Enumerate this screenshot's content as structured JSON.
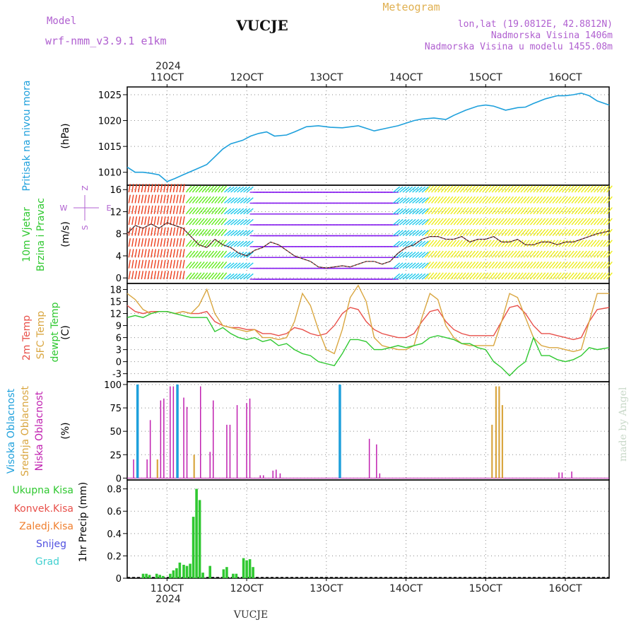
{
  "header": {
    "model_label": "Model",
    "model_name": "wrf-nmm_v3.9.1 e1km",
    "station": "VUCJE",
    "meteogram_label": "Meteogram",
    "lonlat": "lon,lat (19.0812E, 42.8812N)",
    "elevation": "Nadmorska Visina 1406m",
    "model_elevation": "Nadmorska Visina u modelu 1455.08m",
    "year_top": "2024",
    "year_bottom": "2024",
    "footer_station": "VUCJE",
    "watermark": "made by Angel"
  },
  "colors": {
    "pressure": "#1ea0dc",
    "temp2m": "#e8504a",
    "sfc": "#d9a640",
    "dewpt": "#2fc830",
    "high_cloud": "#1ea0dc",
    "mid_cloud": "#d9a640",
    "low_cloud": "#c020b0",
    "total_precip": "#2fc830",
    "conv_precip": "#e8504a",
    "freezing": "#f08030",
    "snow": "#5050e0",
    "hail": "#40d0d0",
    "wind_label": "#2fc830",
    "compass": "#b060d0"
  },
  "chart_data": [
    {
      "type": "line",
      "title": "",
      "ylabel": "(hPa)",
      "side_label": "Pritisak na nivou mora",
      "yticks": [
        1010,
        1015,
        1020,
        1025
      ],
      "ylim": [
        1007.5,
        1026.5
      ],
      "xlim": [
        10.5,
        16.55
      ],
      "x_ticks": [
        11,
        12,
        13,
        14,
        15,
        16
      ],
      "x_tick_labels": [
        "11OCT",
        "12OCT",
        "13OCT",
        "14OCT",
        "15OCT",
        "16OCT"
      ],
      "series": [
        {
          "name": "Pritisak na nivou mora",
          "x": [
            10.5,
            10.6,
            10.7,
            10.8,
            10.9,
            11.0,
            11.1,
            11.2,
            11.35,
            11.5,
            11.6,
            11.7,
            11.8,
            11.95,
            12.05,
            12.15,
            12.25,
            12.35,
            12.5,
            12.6,
            12.75,
            12.9,
            13.05,
            13.2,
            13.4,
            13.5,
            13.6,
            13.75,
            13.9,
            14.0,
            14.1,
            14.2,
            14.35,
            14.5,
            14.6,
            14.75,
            14.9,
            15.0,
            15.1,
            15.25,
            15.4,
            15.5,
            15.6,
            15.75,
            15.9,
            16.0,
            16.1,
            16.2,
            16.3,
            16.4,
            16.55
          ],
          "y": [
            1011,
            1010,
            1010,
            1009.8,
            1009.5,
            1008.2,
            1008.8,
            1009.5,
            1010.5,
            1011.5,
            1013,
            1014.5,
            1015.5,
            1016.2,
            1017,
            1017.5,
            1017.8,
            1017.0,
            1017.2,
            1017.8,
            1018.8,
            1019,
            1018.7,
            1018.6,
            1019,
            1018.5,
            1018,
            1018.5,
            1019,
            1019.5,
            1020,
            1020.3,
            1020.5,
            1020.2,
            1021,
            1022,
            1022.8,
            1023,
            1022.8,
            1022,
            1022.5,
            1022.6,
            1023.3,
            1024.2,
            1024.8,
            1024.8,
            1025,
            1025.3,
            1024.8,
            1023.8,
            1023
          ]
        }
      ]
    },
    {
      "type": "line",
      "title": "",
      "ylabel": "(m/s)",
      "side_label": [
        "10m Vjetar",
        "Brzina i Pravac"
      ],
      "compass": {
        "n": "Z",
        "e": "E",
        "w": "W",
        "s": "S"
      },
      "yticks": [
        0,
        4,
        8,
        12,
        16
      ],
      "ylim": [
        -1,
        16.8
      ],
      "x_ticks": [
        11,
        12,
        13,
        14,
        15,
        16
      ],
      "series": [
        {
          "name": "wind_speed",
          "x": [
            10.5,
            10.6,
            10.7,
            10.8,
            10.9,
            11.0,
            11.1,
            11.2,
            11.3,
            11.4,
            11.5,
            11.6,
            11.7,
            11.8,
            11.9,
            12.0,
            12.1,
            12.2,
            12.3,
            12.4,
            12.5,
            12.6,
            12.7,
            12.8,
            12.9,
            13.0,
            13.1,
            13.2,
            13.3,
            13.4,
            13.5,
            13.6,
            13.7,
            13.8,
            13.9,
            14.0,
            14.1,
            14.2,
            14.3,
            14.4,
            14.5,
            14.6,
            14.7,
            14.8,
            14.9,
            15.0,
            15.1,
            15.2,
            15.3,
            15.4,
            15.5,
            15.6,
            15.7,
            15.8,
            15.9,
            16.0,
            16.1,
            16.2,
            16.3,
            16.4,
            16.55
          ],
          "y": [
            8,
            9.5,
            9,
            9.8,
            9,
            10,
            9.5,
            9,
            7.5,
            6,
            5.5,
            7,
            6,
            5.5,
            4.5,
            4,
            5,
            5.5,
            6.5,
            6,
            5,
            4,
            3.5,
            3,
            2,
            1.8,
            2,
            2.2,
            2,
            2.5,
            3,
            3,
            2.5,
            3,
            4.5,
            5.5,
            6,
            7,
            7.5,
            7.5,
            7,
            7,
            7.5,
            6.5,
            7,
            7,
            7.5,
            6.5,
            6.5,
            7,
            6,
            6,
            6.5,
            6.5,
            6,
            6.5,
            6.5,
            7,
            7.5,
            8,
            8.5
          ]
        }
      ],
      "vane_hue_range": [
        0,
        270
      ]
    },
    {
      "type": "line",
      "title": "",
      "ylabel": "(C)",
      "side_labels": [
        "2m Temp",
        "SFC Temp",
        "dewpt Temp"
      ],
      "yticks": [
        -3,
        0,
        3,
        6,
        9,
        12,
        15,
        18
      ],
      "ylim": [
        -5,
        19.5
      ],
      "x_ticks": [
        11,
        12,
        13,
        14,
        15,
        16
      ],
      "series": [
        {
          "name": "2m Temp",
          "x": [
            10.5,
            10.6,
            10.7,
            10.8,
            10.9,
            11.0,
            11.1,
            11.2,
            11.3,
            11.4,
            11.5,
            11.6,
            11.7,
            11.8,
            11.9,
            12.0,
            12.1,
            12.2,
            12.3,
            12.4,
            12.5,
            12.6,
            12.7,
            12.8,
            12.9,
            13.0,
            13.1,
            13.2,
            13.3,
            13.4,
            13.5,
            13.6,
            13.7,
            13.8,
            13.9,
            14.0,
            14.1,
            14.2,
            14.3,
            14.4,
            14.5,
            14.6,
            14.7,
            14.8,
            14.9,
            15.0,
            15.1,
            15.2,
            15.3,
            15.4,
            15.5,
            15.6,
            15.7,
            15.8,
            15.9,
            16.0,
            16.1,
            16.2,
            16.3,
            16.4,
            16.55
          ],
          "y": [
            14,
            12.5,
            12,
            12.5,
            12.5,
            12.5,
            12,
            12.5,
            12,
            12,
            12.5,
            10,
            9,
            8.5,
            8.5,
            8,
            8,
            7,
            7,
            6.5,
            7,
            8.5,
            8,
            7,
            6.5,
            7,
            9,
            12,
            13.5,
            13,
            10,
            8,
            7,
            6.5,
            6,
            6,
            7,
            10,
            12.5,
            13,
            10,
            8,
            7,
            6.5,
            6.5,
            6.5,
            6.5,
            10,
            13.5,
            14,
            12,
            9,
            7,
            7,
            6.5,
            6,
            5.5,
            6,
            10,
            13,
            13.5
          ]
        },
        {
          "name": "SFC Temp",
          "x": [
            10.5,
            10.6,
            10.7,
            10.8,
            10.9,
            11.0,
            11.1,
            11.2,
            11.3,
            11.4,
            11.5,
            11.6,
            11.7,
            11.8,
            11.9,
            12.0,
            12.1,
            12.2,
            12.3,
            12.4,
            12.5,
            12.6,
            12.7,
            12.8,
            12.9,
            13.0,
            13.1,
            13.2,
            13.3,
            13.4,
            13.5,
            13.6,
            13.7,
            13.8,
            13.9,
            14.0,
            14.1,
            14.2,
            14.3,
            14.4,
            14.5,
            14.6,
            14.7,
            14.8,
            14.9,
            15.0,
            15.1,
            15.2,
            15.3,
            15.4,
            15.5,
            15.6,
            15.7,
            15.8,
            15.9,
            16.0,
            16.1,
            16.2,
            16.3,
            16.4,
            16.55
          ],
          "y": [
            17,
            15.5,
            13,
            12,
            12.5,
            12.5,
            12,
            12.5,
            12,
            14,
            18,
            12,
            9,
            8.5,
            8,
            7.5,
            8,
            6,
            6,
            5.5,
            6,
            10,
            17,
            14,
            8,
            3,
            2,
            8,
            16,
            19,
            15,
            6,
            4,
            3.5,
            3,
            3,
            4,
            11,
            17,
            15.5,
            9,
            6,
            4.5,
            4,
            4,
            4,
            4,
            10,
            17,
            16,
            11,
            6,
            4,
            3.5,
            3.5,
            3,
            2.5,
            3,
            10,
            17,
            17
          ]
        },
        {
          "name": "dewpt Temp",
          "x": [
            10.5,
            10.6,
            10.7,
            10.8,
            10.9,
            11.0,
            11.1,
            11.2,
            11.3,
            11.4,
            11.5,
            11.6,
            11.7,
            11.8,
            11.9,
            12.0,
            12.1,
            12.2,
            12.3,
            12.4,
            12.5,
            12.6,
            12.7,
            12.8,
            12.9,
            13.0,
            13.1,
            13.2,
            13.3,
            13.4,
            13.5,
            13.6,
            13.7,
            13.8,
            13.9,
            14.0,
            14.1,
            14.2,
            14.3,
            14.4,
            14.5,
            14.6,
            14.7,
            14.8,
            14.9,
            15.0,
            15.1,
            15.2,
            15.3,
            15.4,
            15.5,
            15.6,
            15.7,
            15.8,
            15.9,
            16.0,
            16.1,
            16.2,
            16.3,
            16.4,
            16.55
          ],
          "y": [
            11,
            11.5,
            11,
            12,
            12.5,
            12.5,
            12,
            11.5,
            11,
            11,
            11,
            7.5,
            8.5,
            7,
            6,
            5.5,
            6,
            5,
            5.5,
            4,
            4.5,
            3,
            2,
            1.5,
            0,
            -0.5,
            -1,
            2,
            5.5,
            5.5,
            5,
            3,
            3,
            3.5,
            4,
            3.5,
            4,
            4.5,
            6,
            6.5,
            6,
            5.5,
            4.5,
            4.5,
            3.5,
            3,
            0,
            -1.5,
            -3.5,
            -1.5,
            0,
            6,
            1.5,
            1.5,
            0.5,
            0,
            0.5,
            1.5,
            3.5,
            3,
            3.5
          ]
        }
      ]
    },
    {
      "type": "bar",
      "title": "",
      "ylabel": "(%)",
      "side_labels": [
        "Visoka Oblacnost",
        "Srednja Oblacnost",
        "Niska Oblacnost"
      ],
      "yticks": [
        0,
        25,
        50,
        75,
        100
      ],
      "ylim": [
        -2,
        103
      ],
      "x_ticks": [
        11,
        12,
        13,
        14,
        15,
        16
      ],
      "series": [
        {
          "name": "Visoka Oblacnost",
          "x": [
            10.63,
            11.13,
            13.17
          ],
          "values": [
            100,
            100,
            100
          ]
        },
        {
          "name": "Srednja Oblacnost",
          "x": [
            10.88,
            11.34,
            15.08,
            15.13,
            15.17,
            15.21
          ],
          "values": [
            20,
            25,
            57,
            98,
            98,
            78
          ]
        },
        {
          "name": "Niska Oblacnost",
          "x": [
            10.58,
            10.75,
            10.79,
            10.92,
            10.96,
            11.04,
            11.08,
            11.21,
            11.25,
            11.42,
            11.54,
            11.58,
            11.75,
            11.79,
            11.88,
            12.0,
            12.04,
            12.17,
            12.21,
            12.33,
            12.37,
            12.42,
            13.54,
            13.63,
            13.67,
            15.92,
            15.96,
            16.08
          ],
          "values": [
            20,
            20,
            62,
            83,
            85,
            98,
            98,
            86,
            76,
            98,
            28,
            83,
            57,
            57,
            78,
            80,
            85,
            3,
            3,
            8,
            9,
            5,
            42,
            36,
            5,
            6,
            6,
            7
          ]
        }
      ]
    },
    {
      "type": "bar",
      "title": "",
      "ylabel": "1hr Precip (mm)",
      "side_labels": [
        "Ukupna Kisa",
        "Konvek.Kisa",
        "Zaledj.Kisa",
        "Snijeg",
        "Grad"
      ],
      "yticks": [
        0,
        0.2,
        0.4,
        0.6,
        0.8
      ],
      "ytick_labels": [
        "0",
        "0.2",
        "0.4",
        "0.6",
        "0.8"
      ],
      "ylim": [
        0,
        0.88
      ],
      "x_ticks": [
        11,
        12,
        13,
        14,
        15,
        16
      ],
      "x_tick_labels": [
        "11OCT",
        "12OCT",
        "13OCT",
        "14OCT",
        "15OCT",
        "16OCT"
      ],
      "series": [
        {
          "name": "Ukupna Kisa",
          "x": [
            10.7,
            10.74,
            10.78,
            10.87,
            10.91,
            10.95,
            11.04,
            11.08,
            11.12,
            11.16,
            11.21,
            11.25,
            11.29,
            11.33,
            11.37,
            11.41,
            11.45,
            11.54,
            11.71,
            11.75,
            11.83,
            11.87,
            11.96,
            12.0,
            12.04,
            12.08
          ],
          "values": [
            0.04,
            0.04,
            0.03,
            0.04,
            0.03,
            0.02,
            0.04,
            0.07,
            0.09,
            0.14,
            0.12,
            0.11,
            0.13,
            0.55,
            0.8,
            0.7,
            0.05,
            0.11,
            0.08,
            0.1,
            0.04,
            0.04,
            0.18,
            0.16,
            0.17,
            0.1
          ]
        }
      ]
    }
  ]
}
